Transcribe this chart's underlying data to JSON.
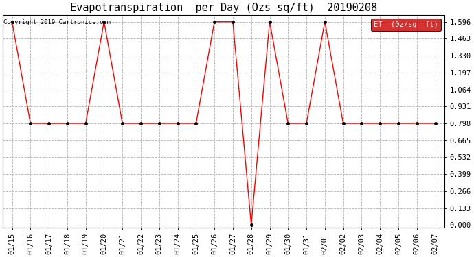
{
  "title": "Evapotranspiration  per Day (Ozs sq/ft)  20190208",
  "copyright_text": "Copyright 2019 Cartronics.com",
  "legend_label": "ET  (0z/sq  ft)",
  "x_labels": [
    "01/15",
    "01/16",
    "01/17",
    "01/18",
    "01/19",
    "01/20",
    "01/21",
    "01/22",
    "01/23",
    "01/24",
    "01/25",
    "01/26",
    "01/27",
    "01/28",
    "01/29",
    "01/30",
    "01/31",
    "02/01",
    "02/02",
    "02/03",
    "02/04",
    "02/05",
    "02/06",
    "02/07"
  ],
  "y_values": [
    1.596,
    0.798,
    0.798,
    0.798,
    0.798,
    1.596,
    0.798,
    0.798,
    0.798,
    0.798,
    0.798,
    1.596,
    1.596,
    0.0,
    1.596,
    0.798,
    0.798,
    1.596,
    0.798,
    0.798,
    0.798,
    0.798,
    0.798,
    0.798
  ],
  "y_ticks": [
    0.0,
    0.133,
    0.266,
    0.399,
    0.532,
    0.665,
    0.798,
    0.931,
    1.064,
    1.197,
    1.33,
    1.463,
    1.596
  ],
  "line_color": "#ff0000",
  "marker_color": "#000000",
  "background_color": "#ffffff",
  "grid_color": "#b0b0b0",
  "legend_bg": "#cc0000",
  "legend_text_color": "#ffffff",
  "title_fontsize": 11,
  "copyright_fontsize": 6.5,
  "tick_fontsize": 7.5,
  "ylim": [
    -0.02,
    1.65
  ]
}
